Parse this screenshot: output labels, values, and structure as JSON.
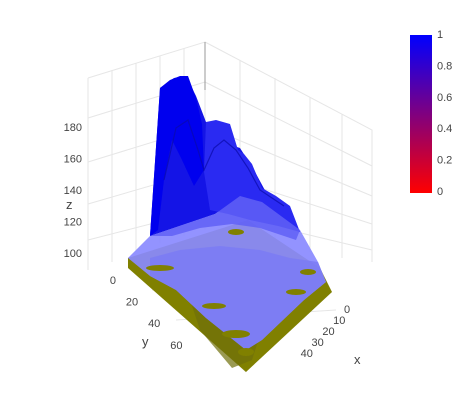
{
  "chart_data": {
    "type": "surface",
    "title": "",
    "axes": {
      "x": {
        "label": "x",
        "ticks": [
          0,
          10,
          20,
          30,
          40
        ],
        "range": [
          0,
          48
        ]
      },
      "y": {
        "label": "y",
        "ticks": [
          0,
          20,
          40,
          60
        ],
        "range": [
          0,
          74
        ]
      },
      "z": {
        "label": "z",
        "ticks": [
          100,
          120,
          140,
          160,
          180
        ],
        "range": [
          95,
          192
        ]
      }
    },
    "grid": true,
    "surfaces": [
      {
        "role": "terrain",
        "color": "#0000ff",
        "opacity": 0.7,
        "description_values": {
          "peak_z": 187,
          "peak_x": 14,
          "peak_y": 8,
          "floor_z": 100
        }
      },
      {
        "role": "flat-plane",
        "color": "#808000",
        "z": 100
      }
    ],
    "colorbar": {
      "ticks": [
        "1",
        "0.8",
        "0.6",
        "0.4",
        "0.2",
        "0"
      ],
      "colorscale": [
        "#ff0000",
        "#0000ff"
      ],
      "position": "right"
    }
  }
}
